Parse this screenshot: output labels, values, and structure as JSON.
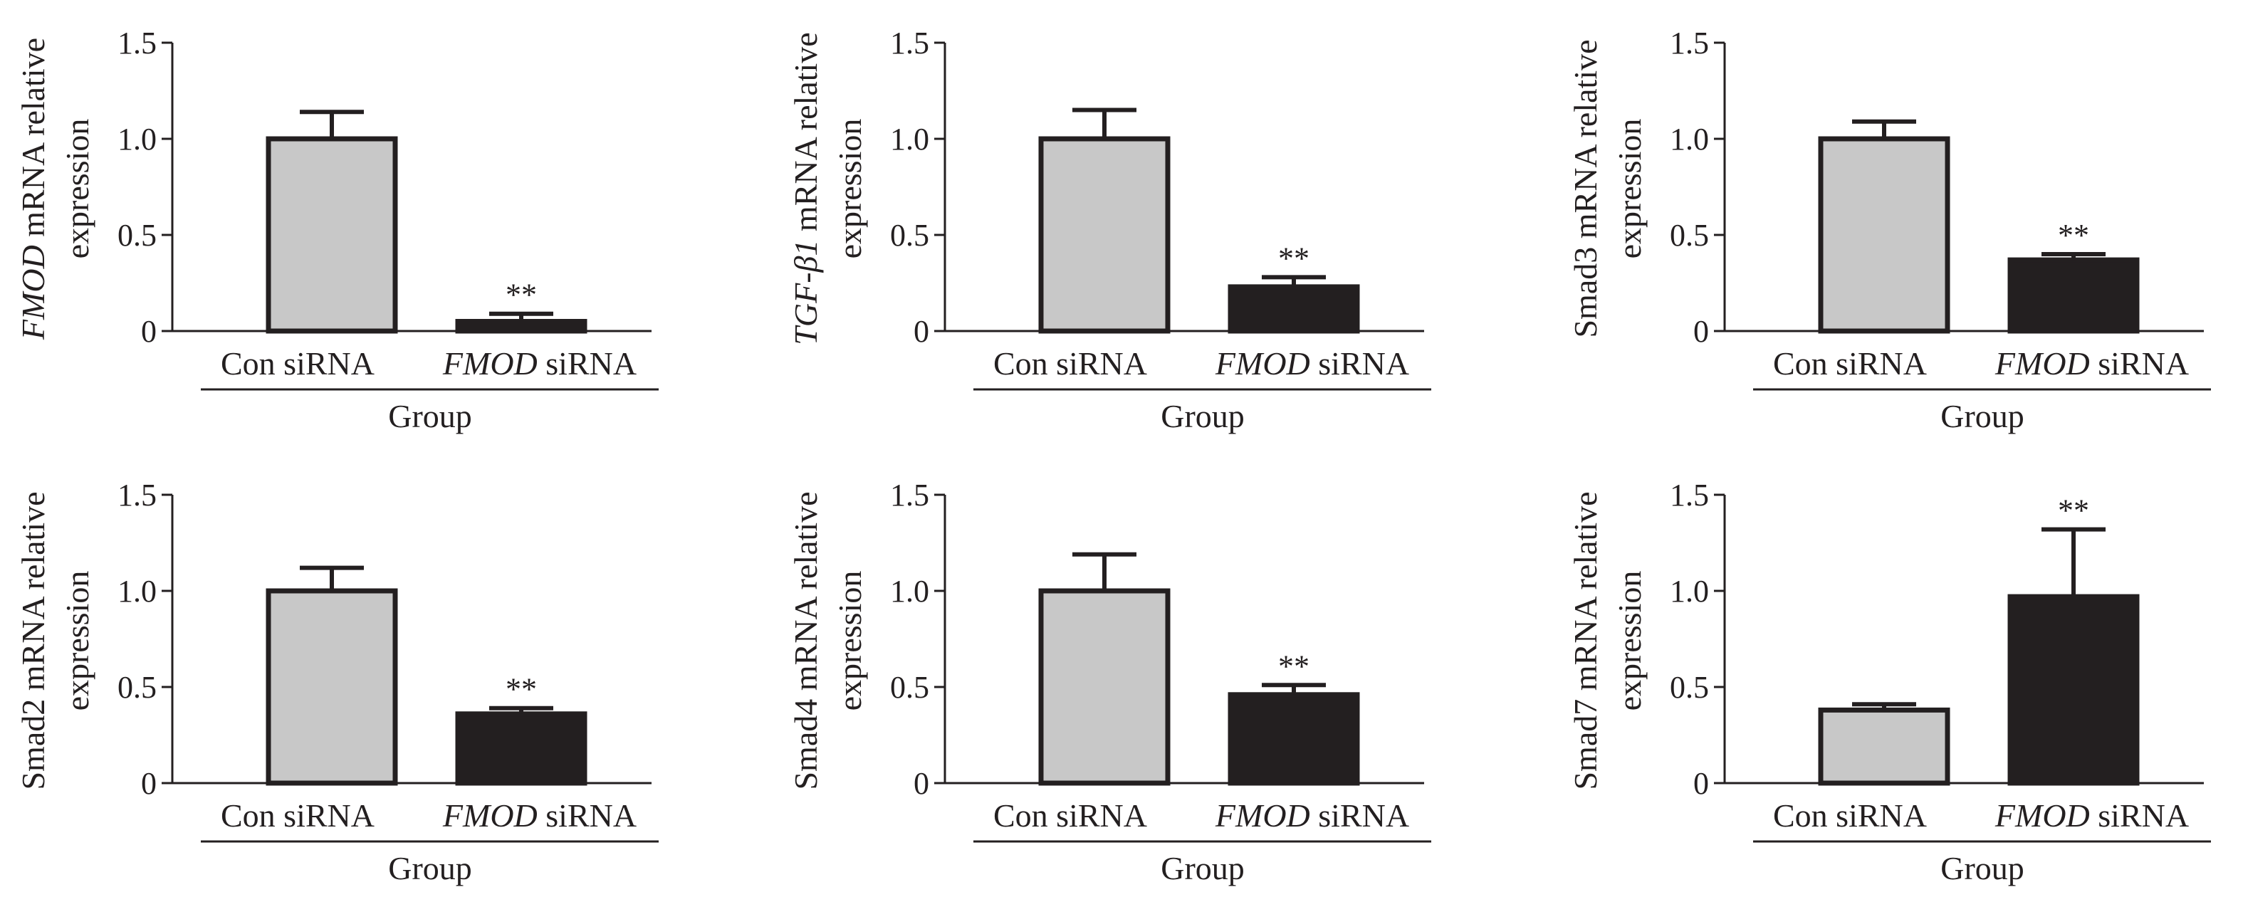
{
  "colors": {
    "ink": "#231f20",
    "con_fill": "#c8c8c8",
    "fmod_fill": "#231f20"
  },
  "chart_data": [
    {
      "type": "bar",
      "ylabel_italic": "FMOD",
      "ylabel_rest": " mRNA relative",
      "ylabel_line2": "expression",
      "xlabel": "Group",
      "ylim": [
        0,
        1.5
      ],
      "yticks": [
        "0",
        "0.5",
        "1.0",
        "1.5"
      ],
      "categories": [
        {
          "italic": "",
          "rest": "Con siRNA"
        },
        {
          "italic": "FMOD",
          "rest": " siRNA"
        }
      ],
      "values": [
        1.0,
        0.05
      ],
      "errors": [
        0.14,
        0.04
      ],
      "significance": [
        "",
        "**"
      ]
    },
    {
      "type": "bar",
      "ylabel_italic": "TGF-β1",
      "ylabel_rest": " mRNA relative",
      "ylabel_line2": "expression",
      "xlabel": "Group",
      "ylim": [
        0,
        1.5
      ],
      "yticks": [
        "0",
        "0.5",
        "1.0",
        "1.5"
      ],
      "categories": [
        {
          "italic": "",
          "rest": "Con siRNA"
        },
        {
          "italic": "FMOD",
          "rest": " siRNA"
        }
      ],
      "values": [
        1.0,
        0.23
      ],
      "errors": [
        0.15,
        0.05
      ],
      "significance": [
        "",
        "**"
      ]
    },
    {
      "type": "bar",
      "ylabel_italic": "",
      "ylabel_rest": "Smad3 mRNA relative",
      "ylabel_line2": "expression",
      "xlabel": "Group",
      "ylim": [
        0,
        1.5
      ],
      "yticks": [
        "0",
        "0.5",
        "1.0",
        "1.5"
      ],
      "categories": [
        {
          "italic": "",
          "rest": "Con siRNA"
        },
        {
          "italic": "FMOD",
          "rest": " siRNA"
        }
      ],
      "values": [
        1.0,
        0.37
      ],
      "errors": [
        0.09,
        0.03
      ],
      "significance": [
        "",
        "**"
      ]
    },
    {
      "type": "bar",
      "ylabel_italic": "",
      "ylabel_rest": "Smad2 mRNA relative",
      "ylabel_line2": "expression",
      "xlabel": "Group",
      "ylim": [
        0,
        1.5
      ],
      "yticks": [
        "0",
        "0.5",
        "1.0",
        "1.5"
      ],
      "categories": [
        {
          "italic": "",
          "rest": "Con siRNA"
        },
        {
          "italic": "FMOD",
          "rest": " siRNA"
        }
      ],
      "values": [
        1.0,
        0.36
      ],
      "errors": [
        0.12,
        0.03
      ],
      "significance": [
        "",
        "**"
      ]
    },
    {
      "type": "bar",
      "ylabel_italic": "",
      "ylabel_rest": "Smad4 mRNA relative",
      "ylabel_line2": "expression",
      "xlabel": "Group",
      "ylim": [
        0,
        1.5
      ],
      "yticks": [
        "0",
        "0.5",
        "1.0",
        "1.5"
      ],
      "categories": [
        {
          "italic": "",
          "rest": "Con siRNA"
        },
        {
          "italic": "FMOD",
          "rest": " siRNA"
        }
      ],
      "values": [
        1.0,
        0.46
      ],
      "errors": [
        0.19,
        0.05
      ],
      "significance": [
        "",
        "**"
      ]
    },
    {
      "type": "bar",
      "ylabel_italic": "",
      "ylabel_rest": "Smad7 mRNA relative",
      "ylabel_line2": "expression",
      "xlabel": "Group",
      "ylim": [
        0,
        1.5
      ],
      "yticks": [
        "0",
        "0.5",
        "1.0",
        "1.5"
      ],
      "categories": [
        {
          "italic": "",
          "rest": "Con siRNA"
        },
        {
          "italic": "FMOD",
          "rest": " siRNA"
        }
      ],
      "values": [
        0.38,
        0.97
      ],
      "errors": [
        0.03,
        0.35
      ],
      "significance": [
        "",
        "**"
      ]
    }
  ]
}
